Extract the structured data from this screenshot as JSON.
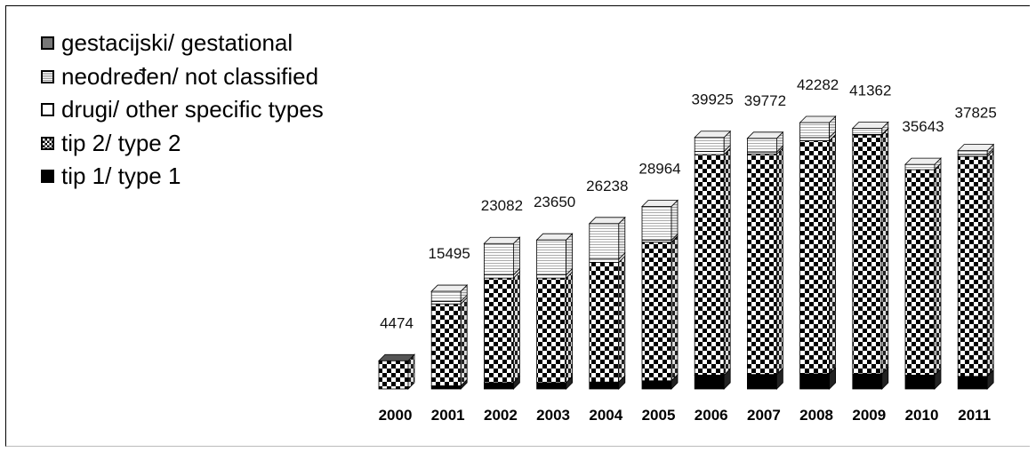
{
  "chart_data": {
    "type": "bar",
    "stacked": true,
    "three_d": true,
    "categories": [
      "2000",
      "2001",
      "2002",
      "2003",
      "2004",
      "2005",
      "2006",
      "2007",
      "2008",
      "2009",
      "2010",
      "2011"
    ],
    "totals": [
      4474,
      15495,
      23082,
      23650,
      26238,
      28964,
      39925,
      39772,
      42282,
      41362,
      35643,
      37825
    ],
    "series": [
      {
        "name": "tip 1/ type 1",
        "pattern": "solid-black",
        "values": [
          0,
          500,
          1000,
          1000,
          1100,
          1300,
          2200,
          2300,
          2400,
          2400,
          2200,
          2000
        ]
      },
      {
        "name": "tip 2/ type 2",
        "pattern": "checker",
        "values": [
          4474,
          13000,
          16600,
          16600,
          19000,
          22000,
          35000,
          35000,
          37000,
          37900,
          32600,
          34900
        ]
      },
      {
        "name": "drugi/ other specific types",
        "pattern": "white",
        "values": [
          0,
          400,
          500,
          500,
          500,
          300,
          500,
          300,
          500,
          100,
          0,
          300
        ]
      },
      {
        "name": "neodređen/ not classified",
        "pattern": "grid",
        "values": [
          0,
          1595,
          4982,
          5550,
          5638,
          5364,
          2225,
          2172,
          2382,
          962,
          843,
          625
        ]
      },
      {
        "name": "gestacijski/ gestational",
        "pattern": "solid-gray",
        "values": [
          0,
          0,
          0,
          0,
          0,
          0,
          0,
          0,
          0,
          0,
          0,
          0
        ]
      }
    ],
    "ylim": [
      0,
      42282
    ],
    "legend_position": "top-left",
    "grid": false
  },
  "legend": {
    "items": [
      {
        "label": "gestacijski/ gestational",
        "color": "#777777"
      },
      {
        "label": "neodređen/ not classified",
        "color": "#bbbbbb"
      },
      {
        "label": "drugi/ other specific types",
        "color": "#ffffff"
      },
      {
        "label": "tip 2/ type 2",
        "color": "#888888"
      },
      {
        "label": "tip 1/ type 1",
        "color": "#000000"
      }
    ]
  }
}
